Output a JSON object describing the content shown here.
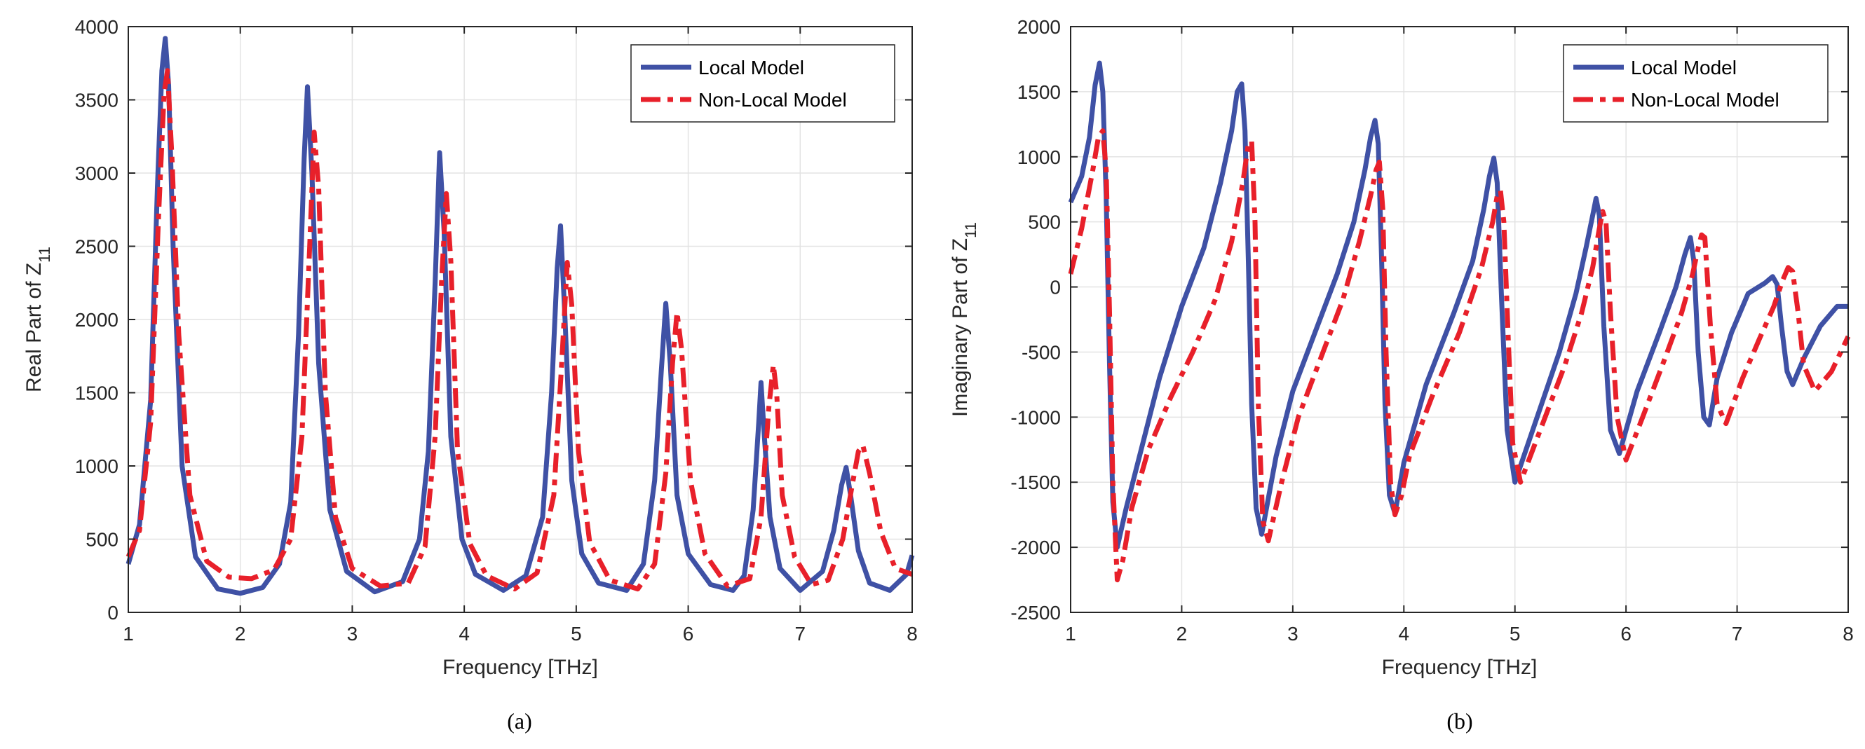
{
  "chart_data": [
    {
      "type": "line",
      "panel_caption": "(a)",
      "xlabel": "Frequency [THz]",
      "ylabel_main": "Real Part of Z",
      "ylabel_sub": "11",
      "xlim": [
        1,
        8
      ],
      "ylim": [
        0,
        4000
      ],
      "xticks": [
        1,
        2,
        3,
        4,
        5,
        6,
        7,
        8
      ],
      "yticks": [
        0,
        500,
        1000,
        1500,
        2000,
        2500,
        3000,
        3500,
        4000
      ],
      "grid": true,
      "legend_position": "top-right",
      "series": [
        {
          "name": "Local Model",
          "color": "#3f51a5",
          "style": "solid",
          "x": [
            1.0,
            1.1,
            1.2,
            1.26,
            1.3,
            1.33,
            1.36,
            1.4,
            1.48,
            1.6,
            1.8,
            2.0,
            2.2,
            2.35,
            2.45,
            2.52,
            2.57,
            2.6,
            2.64,
            2.7,
            2.8,
            2.95,
            3.2,
            3.45,
            3.6,
            3.68,
            3.74,
            3.78,
            3.82,
            3.88,
            3.98,
            4.1,
            4.35,
            4.55,
            4.7,
            4.78,
            4.83,
            4.86,
            4.9,
            4.96,
            5.05,
            5.2,
            5.45,
            5.6,
            5.7,
            5.76,
            5.8,
            5.84,
            5.9,
            6.0,
            6.2,
            6.4,
            6.5,
            6.58,
            6.63,
            6.65,
            6.68,
            6.73,
            6.82,
            7.0,
            7.2,
            7.3,
            7.37,
            7.41,
            7.45,
            7.52,
            7.62,
            7.8,
            7.95,
            8.0
          ],
          "values": [
            330,
            600,
            1450,
            2900,
            3700,
            3920,
            3600,
            2500,
            1000,
            380,
            160,
            130,
            170,
            330,
            750,
            1900,
            3100,
            3590,
            3000,
            1700,
            700,
            280,
            140,
            210,
            500,
            1100,
            2250,
            3140,
            2600,
            1200,
            500,
            260,
            150,
            250,
            650,
            1500,
            2350,
            2640,
            2000,
            900,
            400,
            200,
            150,
            330,
            900,
            1650,
            2110,
            1700,
            800,
            400,
            190,
            150,
            250,
            700,
            1300,
            1570,
            1200,
            650,
            300,
            150,
            280,
            560,
            870,
            990,
            800,
            420,
            200,
            150,
            260,
            390
          ]
        },
        {
          "name": "Non-Local Model",
          "color": "#e8202a",
          "style": "dashdot",
          "x": [
            1.0,
            1.1,
            1.2,
            1.27,
            1.32,
            1.35,
            1.39,
            1.45,
            1.55,
            1.7,
            1.9,
            2.1,
            2.3,
            2.45,
            2.55,
            2.62,
            2.66,
            2.7,
            2.76,
            2.85,
            3.0,
            3.25,
            3.5,
            3.65,
            3.74,
            3.8,
            3.84,
            3.88,
            3.94,
            4.05,
            4.2,
            4.45,
            4.65,
            4.8,
            4.87,
            4.92,
            4.96,
            5.02,
            5.12,
            5.3,
            5.55,
            5.7,
            5.8,
            5.86,
            5.9,
            5.94,
            6.02,
            6.15,
            6.35,
            6.55,
            6.65,
            6.72,
            6.76,
            6.79,
            6.84,
            6.95,
            7.1,
            7.25,
            7.38,
            7.46,
            7.52,
            7.56,
            7.62,
            7.72,
            7.85,
            8.0
          ],
          "values": [
            380,
            560,
            1300,
            2700,
            3550,
            3700,
            3100,
            1900,
            800,
            350,
            240,
            230,
            290,
            500,
            1200,
            2500,
            3280,
            2900,
            1500,
            650,
            300,
            180,
            200,
            450,
            1200,
            2300,
            2860,
            2400,
            1100,
            470,
            250,
            160,
            270,
            800,
            1700,
            2390,
            2100,
            1100,
            480,
            220,
            160,
            330,
            950,
            1700,
            2050,
            1800,
            900,
            400,
            180,
            230,
            650,
            1400,
            1690,
            1500,
            800,
            380,
            190,
            220,
            500,
            850,
            1100,
            1140,
            950,
            550,
            300,
            260
          ]
        }
      ]
    },
    {
      "type": "line",
      "panel_caption": "(b)",
      "xlabel": "Frequency [THz]",
      "ylabel_main": "Imaginary Part of Z",
      "ylabel_sub": "11",
      "xlim": [
        1,
        8
      ],
      "ylim": [
        -2500,
        2000
      ],
      "xticks": [
        1,
        2,
        3,
        4,
        5,
        6,
        7,
        8
      ],
      "yticks": [
        -2500,
        -2000,
        -1500,
        -1000,
        -500,
        0,
        500,
        1000,
        1500,
        2000
      ],
      "grid": true,
      "legend_position": "top-right",
      "series": [
        {
          "name": "Local Model",
          "color": "#3f51a5",
          "style": "solid",
          "x": [
            1.0,
            1.1,
            1.17,
            1.22,
            1.26,
            1.29,
            1.32,
            1.35,
            1.38,
            1.42,
            1.5,
            1.65,
            1.8,
            2.0,
            2.2,
            2.35,
            2.45,
            2.5,
            2.54,
            2.57,
            2.6,
            2.63,
            2.67,
            2.72,
            2.85,
            3.0,
            3.2,
            3.4,
            3.55,
            3.65,
            3.7,
            3.74,
            3.77,
            3.8,
            3.83,
            3.87,
            3.92,
            4.0,
            4.2,
            4.45,
            4.62,
            4.72,
            4.77,
            4.81,
            4.84,
            4.88,
            4.93,
            5.0,
            5.2,
            5.4,
            5.55,
            5.64,
            5.7,
            5.73,
            5.76,
            5.8,
            5.86,
            5.94,
            6.1,
            6.3,
            6.45,
            6.53,
            6.58,
            6.61,
            6.65,
            6.7,
            6.75,
            6.82,
            6.95,
            7.1,
            7.25,
            7.32,
            7.36,
            7.4,
            7.45,
            7.5,
            7.6,
            7.75,
            7.9,
            8.0
          ],
          "values": [
            650,
            850,
            1150,
            1550,
            1720,
            1500,
            700,
            -600,
            -1650,
            -2000,
            -1700,
            -1200,
            -700,
            -150,
            300,
            800,
            1200,
            1500,
            1560,
            1200,
            200,
            -900,
            -1700,
            -1900,
            -1300,
            -800,
            -350,
            100,
            500,
            900,
            1150,
            1280,
            1100,
            200,
            -900,
            -1600,
            -1740,
            -1350,
            -750,
            -200,
            200,
            600,
            850,
            990,
            800,
            -100,
            -1100,
            -1500,
            -1000,
            -500,
            -50,
            300,
            550,
            680,
            550,
            -300,
            -1100,
            -1280,
            -800,
            -350,
            0,
            250,
            380,
            200,
            -500,
            -1000,
            -1060,
            -700,
            -350,
            -50,
            30,
            80,
            20,
            -300,
            -650,
            -750,
            -550,
            -300,
            -150,
            -150
          ]
        },
        {
          "name": "Non-Local Model",
          "color": "#e8202a",
          "style": "dashdot",
          "x": [
            1.0,
            1.1,
            1.2,
            1.25,
            1.29,
            1.32,
            1.35,
            1.38,
            1.42,
            1.47,
            1.55,
            1.7,
            1.9,
            2.1,
            2.3,
            2.45,
            2.55,
            2.6,
            2.63,
            2.66,
            2.69,
            2.73,
            2.78,
            2.9,
            3.05,
            3.25,
            3.45,
            3.6,
            3.7,
            3.75,
            3.78,
            3.81,
            3.84,
            3.88,
            3.92,
            3.98,
            4.05,
            4.25,
            4.5,
            4.7,
            4.8,
            4.84,
            4.87,
            4.9,
            4.94,
            4.98,
            5.05,
            5.25,
            5.45,
            5.6,
            5.7,
            5.76,
            5.79,
            5.82,
            5.86,
            5.92,
            6.0,
            6.15,
            6.35,
            6.5,
            6.6,
            6.65,
            6.68,
            6.71,
            6.76,
            6.82,
            6.9,
            7.05,
            7.2,
            7.33,
            7.41,
            7.46,
            7.5,
            7.55,
            7.6,
            7.7,
            7.85,
            8.0
          ],
          "values": [
            100,
            450,
            900,
            1150,
            1200,
            900,
            -200,
            -1500,
            -2250,
            -2100,
            -1700,
            -1250,
            -850,
            -500,
            -100,
            350,
            800,
            1100,
            1120,
            500,
            -900,
            -1800,
            -1950,
            -1500,
            -1000,
            -550,
            -100,
            350,
            700,
            900,
            960,
            600,
            -500,
            -1500,
            -1750,
            -1600,
            -1300,
            -850,
            -350,
            150,
            500,
            700,
            740,
            500,
            -400,
            -1200,
            -1500,
            -1050,
            -600,
            -200,
            150,
            450,
            580,
            500,
            -200,
            -1000,
            -1330,
            -1000,
            -550,
            -200,
            100,
            300,
            400,
            380,
            -300,
            -900,
            -1050,
            -700,
            -400,
            -150,
            50,
            150,
            120,
            -200,
            -600,
            -800,
            -650,
            -380
          ]
        }
      ]
    }
  ]
}
